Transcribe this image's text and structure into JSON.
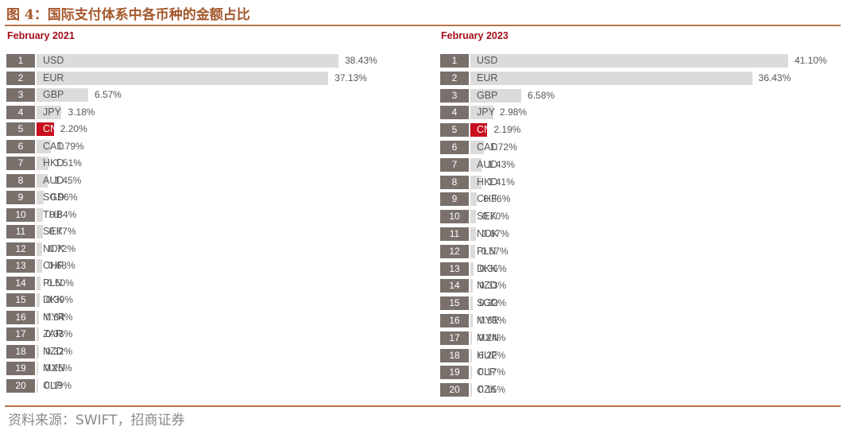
{
  "figure": {
    "title": "图 4：国际支付体系中各币种的金额占比",
    "source": "资料来源：SWIFT，招商证券",
    "highlight_color": "#c8101e",
    "bar_color": "#dddbd9",
    "rank_color": "#7a706b"
  },
  "chart_data": [
    {
      "type": "bar",
      "orientation": "horizontal",
      "title": "February 2021",
      "highlight": "CNY",
      "value_format": "{v}%",
      "ranks": [
        1,
        2,
        3,
        4,
        5,
        6,
        7,
        8,
        9,
        10,
        11,
        12,
        13,
        14,
        15,
        16,
        17,
        18,
        19,
        20
      ],
      "categories": [
        "USD",
        "EUR",
        "GBP",
        "JPY",
        "CNY",
        "CAD",
        "HKD",
        "AUD",
        "SGD",
        "THB",
        "SEK",
        "NOK",
        "CHF",
        "PLN",
        "DKK",
        "MYR",
        "ZAR",
        "NZD",
        "MXN",
        "CLP"
      ],
      "values": [
        38.43,
        37.13,
        6.57,
        3.18,
        2.2,
        1.79,
        1.51,
        1.45,
        0.96,
        0.84,
        0.77,
        0.72,
        0.68,
        0.5,
        0.39,
        0.34,
        0.33,
        0.32,
        0.25,
        0.19
      ],
      "labels": [
        "38.43%",
        "37.13%",
        "6.57%",
        "3.18%",
        "2.20%",
        "1.79%",
        "1.51%",
        "1.45%",
        "0.96%",
        "0.84%",
        "0.77%",
        "0.72%",
        "0.68%",
        "0.50%",
        "0.39%",
        "0.34%",
        "0.33%",
        "0.32%",
        "0.25%",
        "0.19%"
      ]
    },
    {
      "type": "bar",
      "orientation": "horizontal",
      "title": "February 2023",
      "highlight": "CNY",
      "value_format": "{v}%",
      "ranks": [
        1,
        2,
        3,
        4,
        5,
        6,
        7,
        8,
        9,
        10,
        11,
        12,
        13,
        14,
        15,
        16,
        17,
        18,
        19,
        20
      ],
      "categories": [
        "USD",
        "EUR",
        "GBP",
        "JPY",
        "CNY",
        "CAD",
        "AUD",
        "HKD",
        "CHF",
        "SEK",
        "NOK",
        "PLN",
        "DKK",
        "NZD",
        "SGD",
        "MYR",
        "MXN",
        "HUF",
        "CLP",
        "CZK"
      ],
      "values": [
        41.1,
        36.43,
        6.58,
        2.98,
        2.19,
        1.72,
        1.43,
        1.41,
        0.86,
        0.7,
        0.67,
        0.57,
        0.36,
        0.33,
        0.32,
        0.31,
        0.24,
        0.22,
        0.17,
        0.15
      ],
      "labels": [
        "41.10%",
        "36.43%",
        "6.58%",
        "2.98%",
        "2.19%",
        "1.72%",
        "1.43%",
        "1.41%",
        "0.86%",
        "0.70%",
        "0.67%",
        "0.57%",
        "0.36%",
        "0.33%",
        "0.32%",
        "0.31%",
        "0.24%",
        "0.22%",
        "0.17%",
        "0.15%"
      ]
    }
  ]
}
